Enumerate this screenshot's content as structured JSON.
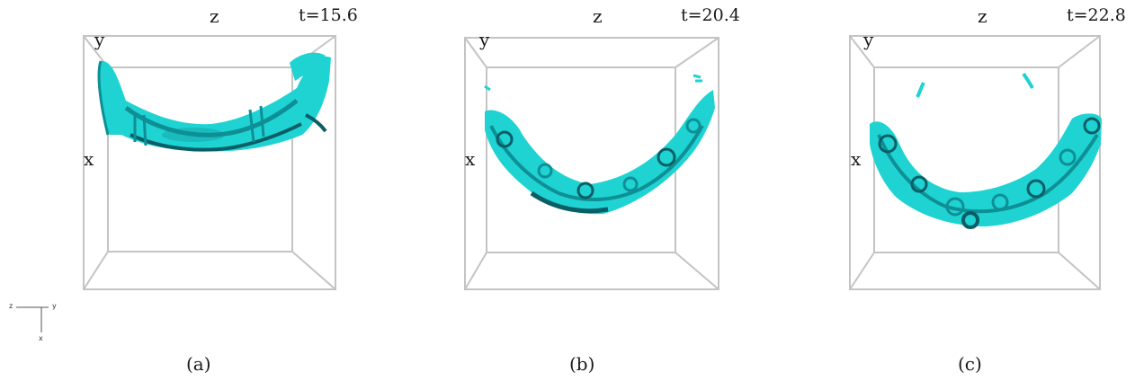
{
  "colors": {
    "surface": "#1fd3d3",
    "surface_dark": "#0e8f95",
    "surface_shadow": "#0a5e66",
    "box": "#c4c4c4"
  },
  "triad": {
    "left": "z",
    "right": "y",
    "down": "x"
  },
  "panels": [
    {
      "id": "a",
      "top_axis": "z",
      "side_axis_top": "y",
      "side_axis_left": "x",
      "time": "t=15.6",
      "caption": "(a)"
    },
    {
      "id": "b",
      "top_axis": "z",
      "side_axis_top": "y",
      "side_axis_left": "x",
      "time": "t=20.4",
      "caption": "(b)"
    },
    {
      "id": "c",
      "top_axis": "z",
      "side_axis_top": "y",
      "side_axis_left": "x",
      "time": "t=22.8",
      "caption": "(c)"
    }
  ]
}
